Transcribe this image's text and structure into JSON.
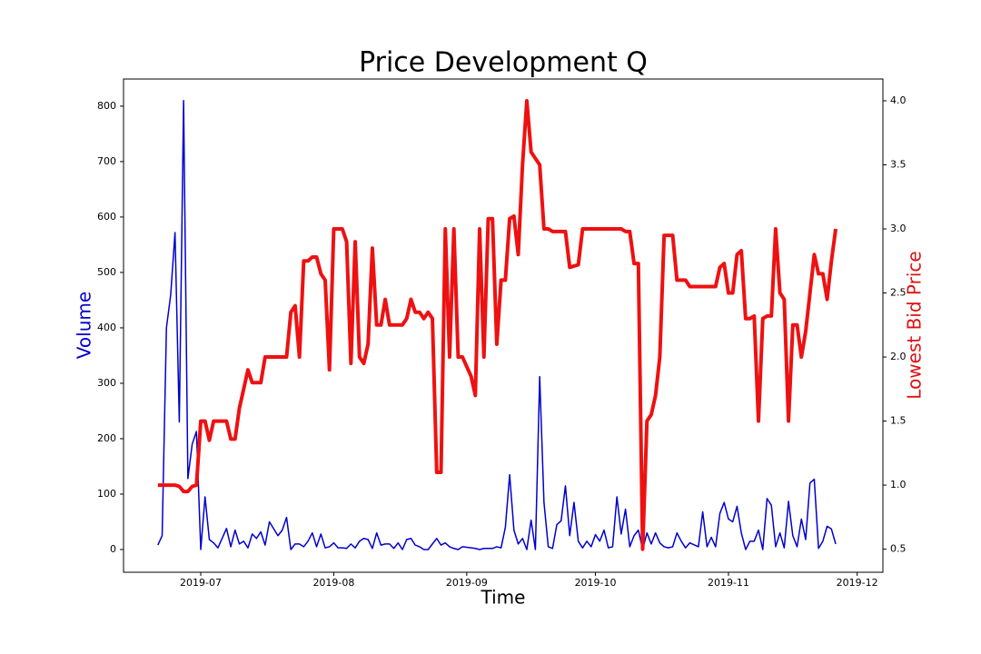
{
  "chart_data": {
    "type": "line",
    "title": "Price Development Q",
    "x_label": "Time",
    "y_label": "Volume",
    "y2_label": "Lowest Bid Price",
    "x": [
      -10,
      -9,
      -8,
      -7,
      -6,
      -5,
      -4,
      -3,
      -2,
      -1,
      0,
      1,
      2,
      3,
      4,
      6,
      7,
      8,
      9,
      10,
      11,
      12,
      13,
      14,
      15,
      16,
      18,
      19,
      20,
      21,
      22,
      23,
      24,
      25,
      26,
      27,
      28,
      29,
      30,
      31,
      32,
      33,
      34,
      35,
      36,
      37,
      38,
      39,
      40,
      41,
      42,
      43,
      44,
      45,
      46,
      47,
      48,
      49,
      50,
      51,
      52,
      53,
      54,
      55,
      56,
      57,
      58,
      59,
      60,
      61,
      63,
      64,
      65,
      66,
      67,
      68,
      69,
      70,
      71,
      72,
      73,
      74,
      75,
      76,
      77,
      78,
      79,
      80,
      81,
      82,
      83,
      84,
      85,
      86,
      87,
      88,
      89,
      90,
      91,
      92,
      93,
      94,
      95,
      96,
      97,
      98,
      99,
      100,
      101,
      102,
      103,
      104,
      105,
      106,
      107,
      108,
      109,
      110,
      111,
      112,
      113,
      114,
      116,
      117,
      118,
      119,
      120,
      121,
      122,
      123,
      124,
      125,
      126,
      127,
      128,
      129,
      130,
      131,
      132,
      133,
      134,
      135,
      136,
      137,
      138,
      139,
      140,
      141,
      142,
      143,
      144,
      145,
      146,
      147,
      148
    ],
    "series": [
      {
        "name": "Volume",
        "color": "#0000cc",
        "axis": "y",
        "values": [
          8,
          25,
          400,
          460,
          572,
          230,
          810,
          128,
          190,
          213,
          0,
          95,
          18,
          12,
          3,
          38,
          5,
          35,
          10,
          15,
          3,
          28,
          20,
          32,
          8,
          50,
          25,
          35,
          58,
          0,
          10,
          10,
          5,
          15,
          30,
          5,
          28,
          3,
          5,
          12,
          3,
          3,
          2,
          10,
          3,
          15,
          20,
          18,
          2,
          30,
          8,
          10,
          10,
          2,
          12,
          0,
          18,
          20,
          8,
          5,
          0,
          0,
          10,
          20,
          8,
          12,
          5,
          2,
          0,
          5,
          3,
          2,
          0,
          2,
          2,
          2,
          5,
          3,
          40,
          135,
          35,
          10,
          20,
          0,
          53,
          0,
          312,
          85,
          5,
          2,
          45,
          52,
          115,
          25,
          85,
          15,
          3,
          15,
          5,
          27,
          15,
          35,
          3,
          5,
          95,
          28,
          73,
          5,
          25,
          35,
          0,
          30,
          10,
          30,
          12,
          5,
          3,
          5,
          30,
          15,
          3,
          12,
          5,
          68,
          5,
          22,
          5,
          65,
          85,
          55,
          50,
          78,
          30,
          0,
          15,
          15,
          35,
          0,
          92,
          80,
          5,
          30,
          3,
          87,
          25,
          5,
          55,
          18,
          120,
          127,
          2,
          15,
          42,
          37,
          10
        ]
      },
      {
        "name": "Lowest Bid Price",
        "color": "#ee1111",
        "axis": "y2",
        "values": [
          1.0,
          1.0,
          1.0,
          1.0,
          1.0,
          0.99,
          0.95,
          0.95,
          0.99,
          1.0,
          1.5,
          1.5,
          1.35,
          1.5,
          1.5,
          1.5,
          1.36,
          1.36,
          1.6,
          1.75,
          1.9,
          1.8,
          1.8,
          1.8,
          2.0,
          2.0,
          2.0,
          2.0,
          2.0,
          2.35,
          2.4,
          2.0,
          2.75,
          2.75,
          2.78,
          2.78,
          2.65,
          2.6,
          1.9,
          3.0,
          3.0,
          3.0,
          2.9,
          1.95,
          2.9,
          2.0,
          1.95,
          2.1,
          2.85,
          2.25,
          2.25,
          2.45,
          2.25,
          2.25,
          2.25,
          2.25,
          2.3,
          2.45,
          2.35,
          2.35,
          2.3,
          2.35,
          2.3,
          1.1,
          1.1,
          3.0,
          2.0,
          3.0,
          2.0,
          2.0,
          1.85,
          1.7,
          3.0,
          2.0,
          3.08,
          3.08,
          2.1,
          2.6,
          2.6,
          3.08,
          3.1,
          2.8,
          3.5,
          4.0,
          3.6,
          3.55,
          3.5,
          3.0,
          3.0,
          2.98,
          2.98,
          2.98,
          2.98,
          2.7,
          2.71,
          2.72,
          3.0,
          3.0,
          3.0,
          3.0,
          3.0,
          3.0,
          3.0,
          3.0,
          3.0,
          3.0,
          2.98,
          2.98,
          2.73,
          2.73,
          0.5,
          1.5,
          1.55,
          1.7,
          2.0,
          2.95,
          2.95,
          2.95,
          2.6,
          2.6,
          2.6,
          2.55,
          2.55,
          2.55,
          2.55,
          2.55,
          2.55,
          2.7,
          2.73,
          2.5,
          2.5,
          2.8,
          2.83,
          2.3,
          2.3,
          2.32,
          1.5,
          2.3,
          2.32,
          2.32,
          3.0,
          2.5,
          2.45,
          1.5,
          2.25,
          2.25,
          2.0,
          2.2,
          2.5,
          2.8,
          2.65,
          2.65,
          2.45,
          2.75,
          3.0
        ]
      }
    ],
    "xlim": [
      -18,
      159
    ],
    "xticks": [
      {
        "value": 0,
        "label": "2019-07"
      },
      {
        "value": 31,
        "label": "2019-08"
      },
      {
        "value": 62,
        "label": "2019-09"
      },
      {
        "value": 92,
        "label": "2019-10"
      },
      {
        "value": 123,
        "label": "2019-11"
      },
      {
        "value": 153,
        "label": "2019-12"
      }
    ],
    "ylim": [
      -41,
      849
    ],
    "yticks": [
      0,
      100,
      200,
      300,
      400,
      500,
      600,
      700,
      800
    ],
    "y2lim": [
      0.32,
      4.17
    ],
    "y2ticks": [
      0.5,
      {
        "value": 1,
        "label": "1.0"
      },
      1.5,
      {
        "value": 2,
        "label": "2.0"
      },
      2.5,
      {
        "value": 3,
        "label": "3.0"
      },
      3.5,
      {
        "value": 4,
        "label": "4.0"
      }
    ],
    "grid": false
  }
}
